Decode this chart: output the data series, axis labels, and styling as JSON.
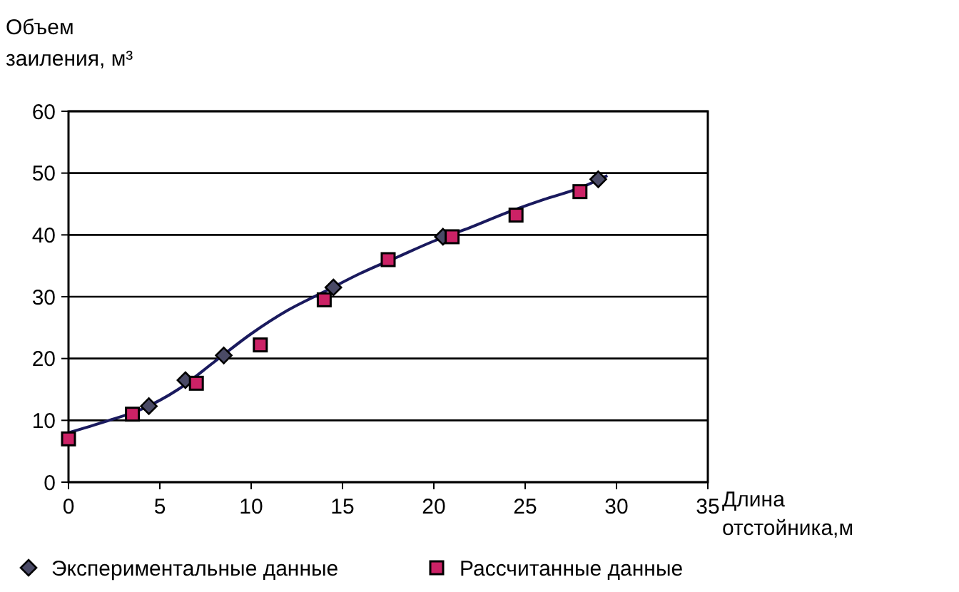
{
  "chart_data": {
    "type": "scatter",
    "xlabel": "Длина\nотстойника,м",
    "ylabel": "Объем\nзаиления, м³",
    "xlim": [
      0,
      35
    ],
    "xticks": [
      0,
      5,
      10,
      15,
      20,
      25,
      30,
      35
    ],
    "ylim": [
      0,
      60
    ],
    "yticks": [
      0,
      10,
      20,
      30,
      40,
      50,
      60
    ],
    "grid": "y",
    "legend": "bottom",
    "series": [
      {
        "type": "line",
        "color": "#1a1a5e",
        "marker": "none",
        "x": [
          0,
          2,
          4,
          6,
          8,
          10,
          12,
          14,
          16,
          18,
          20,
          22,
          24,
          26,
          28,
          29.5
        ],
        "values": [
          8,
          9.8,
          11.8,
          15,
          19.5,
          24,
          27.8,
          30.8,
          33.8,
          36.4,
          39,
          41.2,
          43.6,
          45.7,
          47.6,
          49.6
        ]
      },
      {
        "name": "Экспериментальные данные",
        "color": "#4a4a66",
        "marker": "diamond",
        "x": [
          4.4,
          6.4,
          8.5,
          14.5,
          20.5,
          29
        ],
        "values": [
          12.3,
          16.5,
          20.5,
          31.5,
          39.7,
          49
        ]
      },
      {
        "name": "Рассчитанные данные",
        "color": "#cc2266",
        "marker": "square",
        "x": [
          0,
          3.5,
          7,
          10.5,
          14,
          17.5,
          21,
          24.5,
          28
        ],
        "values": [
          7,
          11,
          16,
          22.2,
          29.5,
          36,
          39.7,
          43.2,
          47
        ]
      }
    ]
  }
}
